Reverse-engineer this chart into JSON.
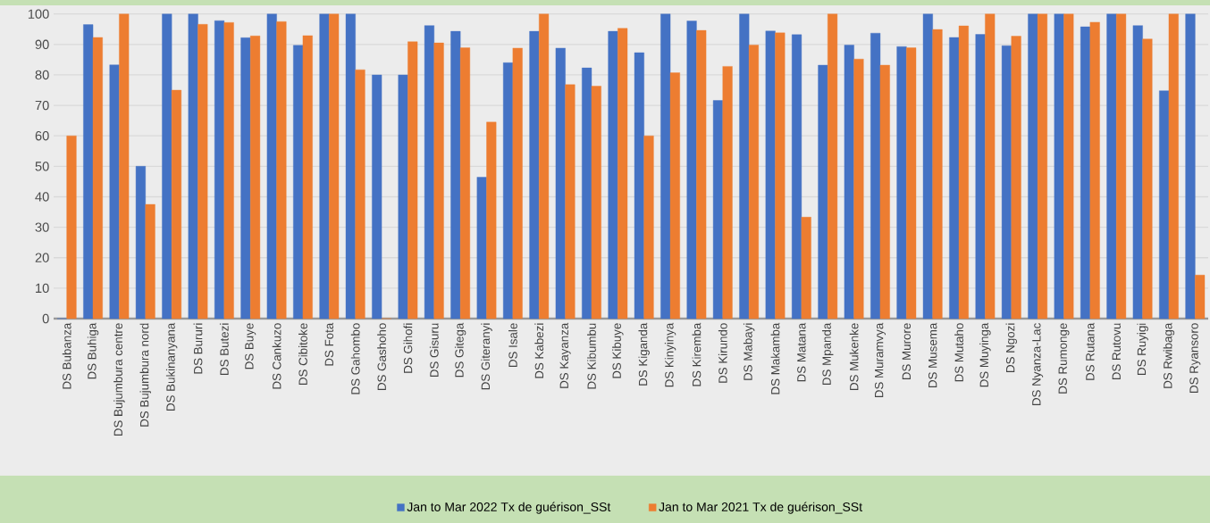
{
  "chart_data": {
    "type": "bar",
    "categories": [
      "DS Bubanza",
      "DS Buhiga",
      "DS Bujumbura centre",
      "DS Bujumbura nord",
      "DS Bukinanyana",
      "DS Bururi",
      "DS Butezi",
      "DS Buye",
      "DS Cankuzo",
      "DS Cibitoke",
      "DS Fota",
      "DS Gahombo",
      "DS Gashoho",
      "DS Gihofi",
      "DS Gisuru",
      "DS Gitega",
      "DS Giteranyi",
      "DS Isale",
      "DS Kabezi",
      "DS Kayanza",
      "DS Kibumbu",
      "DS Kibuye",
      "DS Kiganda",
      "DS Kinyinya",
      "DS Kiremba",
      "DS Kirundo",
      "DS Mabayi",
      "DS Makamba",
      "DS Matana",
      "DS Mpanda",
      "DS Mukenke",
      "DS Muramvya",
      "DS Murore",
      "DS Musema",
      "DS Mutaho",
      "DS Muyinga",
      "DS Ngozi",
      "DS Nyanza-Lac",
      "DS Rumonge",
      "DS Rutana",
      "DS Rutovu",
      "DS Ruyigi",
      "DS Rwibaga",
      "DS Ryansoro"
    ],
    "series": [
      {
        "name": "Jan to Mar 2022 Tx de guérison_SSt",
        "color": "#4472c4",
        "values": [
          0,
          96.5,
          83.3,
          50,
          100,
          100,
          97.8,
          92.2,
          100,
          89.7,
          100,
          100,
          80,
          80,
          96.2,
          94.3,
          46.4,
          84,
          94.3,
          88.8,
          82.3,
          94.3,
          87.3,
          100,
          97.7,
          71.6,
          100,
          94.4,
          93.2,
          83.2,
          89.8,
          93.7,
          89.3,
          100,
          92.3,
          93.3,
          89.6,
          100,
          100,
          95.8,
          100,
          96.2,
          74.8,
          100
        ]
      },
      {
        "name": "Jan to Mar 2021 Tx de guérison_SSt",
        "color": "#ed7d31",
        "values": [
          60,
          92.3,
          100,
          37.5,
          75,
          96.6,
          97.2,
          92.8,
          97.5,
          92.9,
          100,
          81.7,
          0,
          90.9,
          90.5,
          88.9,
          64.5,
          88.8,
          100,
          76.8,
          76.3,
          95.3,
          60,
          80.7,
          94.6,
          82.8,
          89.8,
          93.8,
          33.3,
          100,
          85.2,
          83.2,
          88.9,
          94.9,
          96.1,
          100,
          92.7,
          100,
          100,
          97.3,
          100,
          91.8,
          100,
          14.3
        ]
      }
    ],
    "ylim": [
      0,
      100
    ],
    "yticks": [
      0,
      10,
      20,
      30,
      40,
      50,
      60,
      70,
      80,
      90,
      100
    ],
    "grid": "y",
    "legend": "bottom"
  }
}
